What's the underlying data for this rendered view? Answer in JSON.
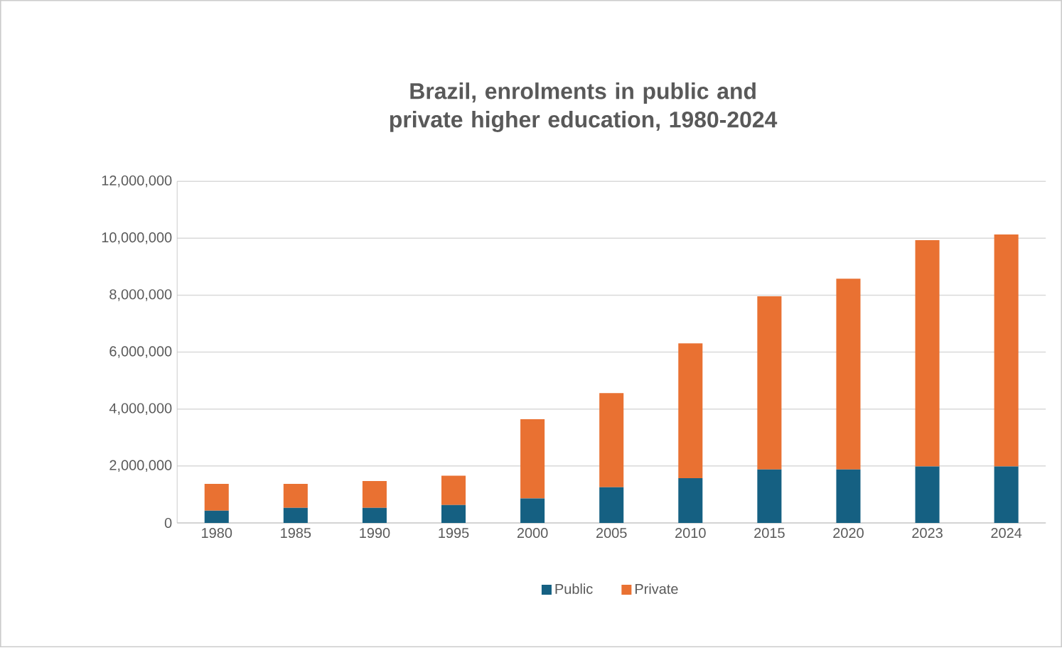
{
  "chart_data": {
    "type": "bar",
    "stacked": true,
    "title": "Brazil, enrolments in public and private higher education, 1980-2024",
    "categories": [
      "1980",
      "1985",
      "1990",
      "1995",
      "2000",
      "2005",
      "2010",
      "2015",
      "2020",
      "2023",
      "2024"
    ],
    "series": [
      {
        "name": "Public",
        "color": "#156082",
        "values": [
          430000,
          530000,
          530000,
          630000,
          860000,
          1250000,
          1570000,
          1880000,
          1880000,
          1980000,
          1980000
        ]
      },
      {
        "name": "Private",
        "color": "#e97132",
        "values": [
          940000,
          840000,
          940000,
          1030000,
          2780000,
          3310000,
          4740000,
          6080000,
          6700000,
          7950000,
          8150000
        ]
      }
    ],
    "ylim": [
      0,
      12000000
    ],
    "yticks": [
      {
        "value": 0,
        "label": "0"
      },
      {
        "value": 2000000,
        "label": "2,000,000"
      },
      {
        "value": 4000000,
        "label": "4,000,000"
      },
      {
        "value": 6000000,
        "label": "6,000,000"
      },
      {
        "value": 8000000,
        "label": "8,000,000"
      },
      {
        "value": 10000000,
        "label": "10,000,000"
      },
      {
        "value": 12000000,
        "label": "12,000,000"
      }
    ],
    "grid": "y",
    "legend": "bottom"
  }
}
